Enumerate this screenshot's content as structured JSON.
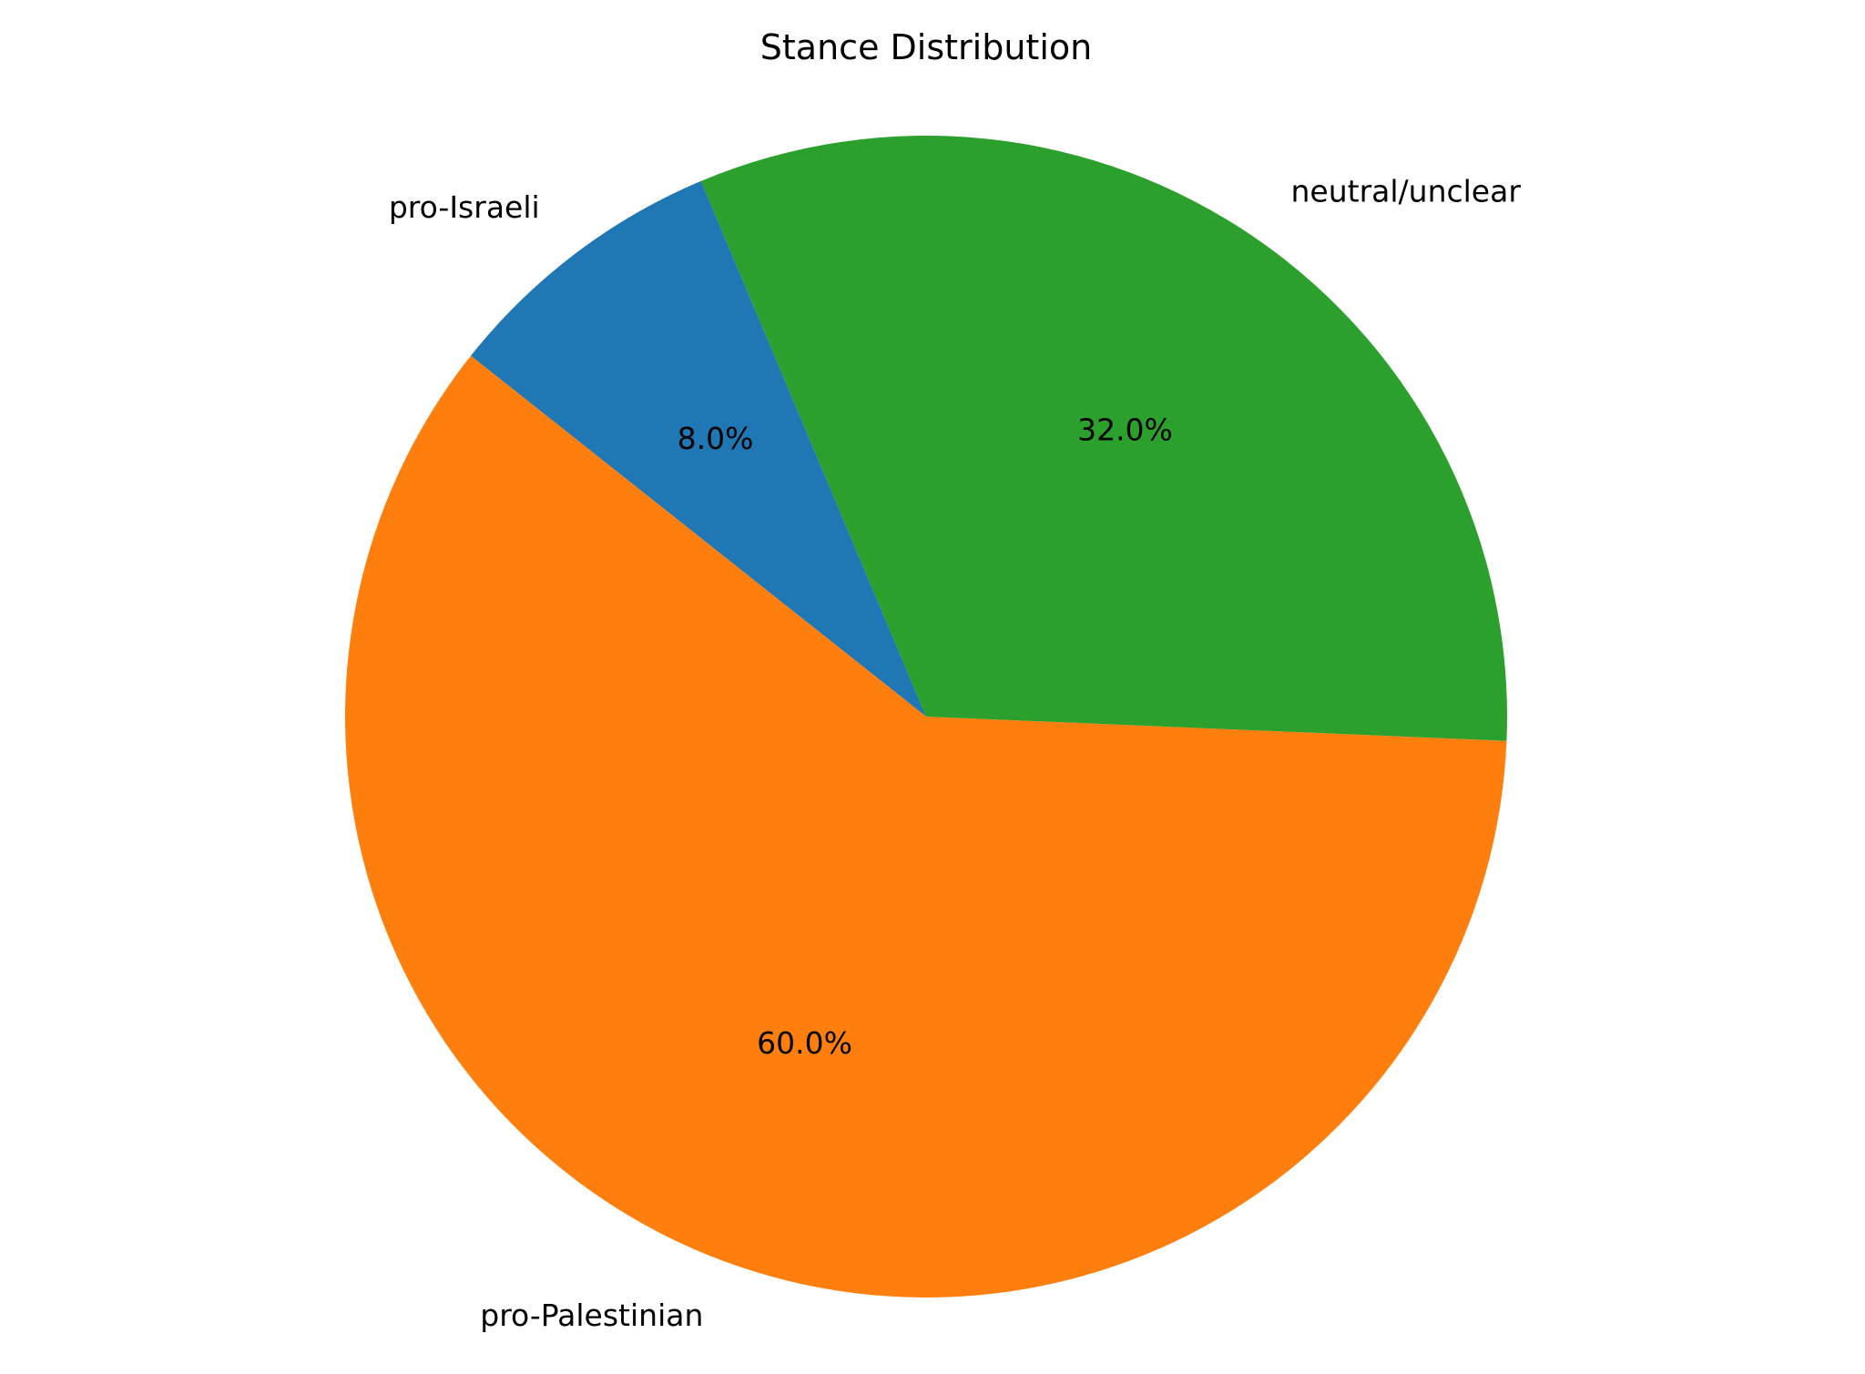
{
  "chart_data": {
    "type": "pie",
    "title": "Stance Distribution",
    "slices": [
      {
        "label": "pro-Israeli",
        "value": 8.0,
        "pct_label": "8.0%",
        "color": "#1f77b4"
      },
      {
        "label": "pro-Palestinian",
        "value": 60.0,
        "pct_label": "60.0%",
        "color": "#ff7f0e"
      },
      {
        "label": "neutral/unclear",
        "value": 32.0,
        "pct_label": "32.0%",
        "color": "#2ca02c"
      }
    ],
    "legend": "none"
  }
}
